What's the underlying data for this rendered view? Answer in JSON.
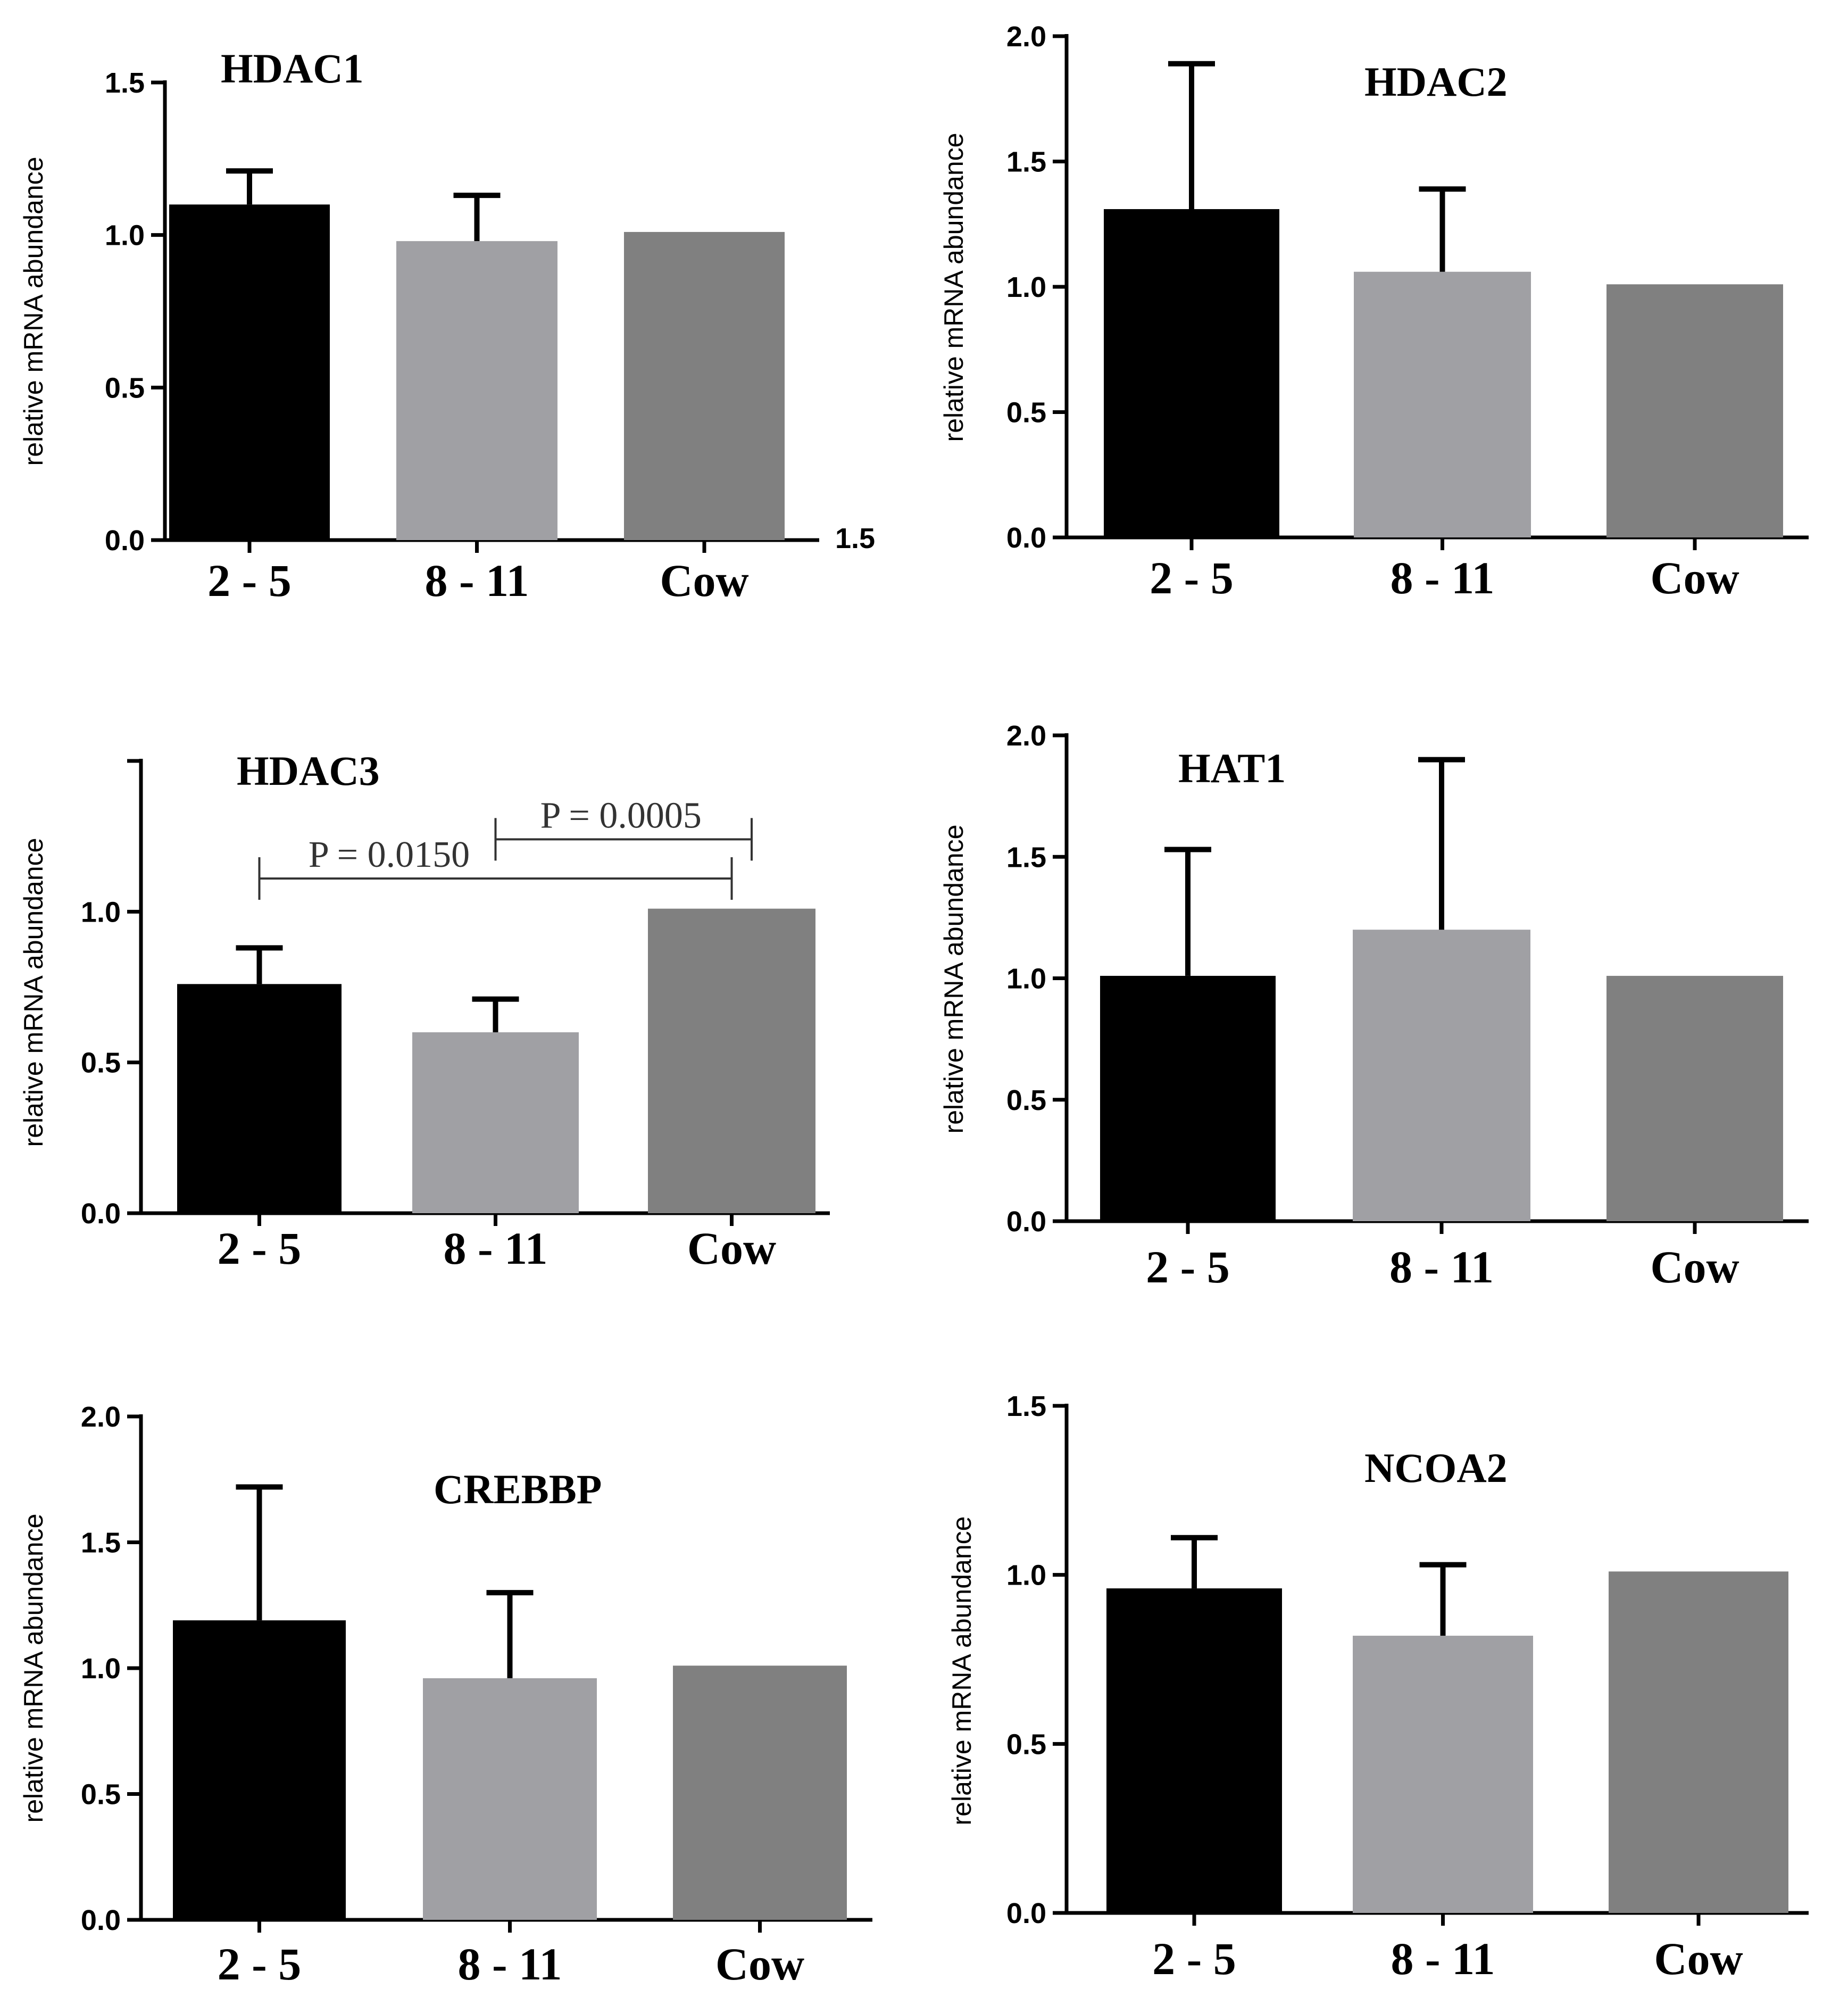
{
  "chart_data": [
    {
      "type": "bar",
      "title": "HDAC1",
      "ylabel": "relative mRNA abundance",
      "categories": [
        "2 - 5",
        "8 - 11",
        "Cow"
      ],
      "values": [
        1.1,
        0.98,
        1.01
      ],
      "errors": [
        0.11,
        0.15,
        0
      ],
      "colors": [
        "#000000",
        "#a0a0a4",
        "#808080"
      ],
      "ylim": [
        0,
        1.5
      ],
      "yticks": [
        "0.0",
        "0.5",
        "1.0",
        "1.5"
      ],
      "annotations": [],
      "stray_label": "1.5"
    },
    {
      "type": "bar",
      "title": "HDAC2",
      "ylabel": "relative mRNA abundance",
      "categories": [
        "2 - 5",
        "8 - 11",
        "Cow"
      ],
      "values": [
        1.31,
        1.06,
        1.01
      ],
      "errors": [
        0.58,
        0.33,
        0
      ],
      "colors": [
        "#000000",
        "#a0a0a4",
        "#808080"
      ],
      "ylim": [
        0,
        2.0
      ],
      "yticks": [
        "0.0",
        "0.5",
        "1.0",
        "1.5",
        "2.0"
      ],
      "annotations": []
    },
    {
      "type": "bar",
      "title": "HDAC3",
      "ylabel": "relative mRNA abundance",
      "categories": [
        "2 - 5",
        "8 - 11",
        "Cow"
      ],
      "values": [
        0.76,
        0.6,
        1.01
      ],
      "errors": [
        0.12,
        0.11,
        0
      ],
      "colors": [
        "#000000",
        "#a0a0a4",
        "#808080"
      ],
      "ylim": [
        0,
        1.5
      ],
      "yticks": [
        "0.0",
        "0.5",
        "1.0"
      ],
      "annotations": [
        {
          "text": "P = 0.0005",
          "from": 1,
          "to": 2,
          "level": 1.24
        },
        {
          "text": "P = 0.0150",
          "from": 0,
          "to": 2,
          "level": 1.11
        }
      ]
    },
    {
      "type": "bar",
      "title": "HAT1",
      "ylabel": "relative mRNA abundance",
      "categories": [
        "2 - 5",
        "8 - 11",
        "Cow"
      ],
      "values": [
        1.01,
        1.2,
        1.01
      ],
      "errors": [
        0.52,
        0.7,
        0
      ],
      "colors": [
        "#000000",
        "#a0a0a4",
        "#808080"
      ],
      "ylim": [
        0,
        2.0
      ],
      "yticks": [
        "0.0",
        "0.5",
        "1.0",
        "1.5",
        "2.0"
      ],
      "annotations": []
    },
    {
      "type": "bar",
      "title": "CREBBP",
      "ylabel": "relative mRNA abundance",
      "categories": [
        "2 - 5",
        "8 - 11",
        "Cow"
      ],
      "values": [
        1.19,
        0.96,
        1.01
      ],
      "errors": [
        0.53,
        0.34,
        0
      ],
      "colors": [
        "#000000",
        "#a0a0a4",
        "#808080"
      ],
      "ylim": [
        0,
        2.0
      ],
      "yticks": [
        "0.0",
        "0.5",
        "1.0",
        "1.5",
        "2.0"
      ],
      "annotations": []
    },
    {
      "type": "bar",
      "title": "NCOA2",
      "ylabel": "relative mRNA abundance",
      "categories": [
        "2 - 5",
        "8 - 11",
        "Cow"
      ],
      "values": [
        0.96,
        0.82,
        1.01
      ],
      "errors": [
        0.15,
        0.21,
        0
      ],
      "colors": [
        "#000000",
        "#a0a0a4",
        "#808080"
      ],
      "ylim": [
        0,
        1.5
      ],
      "yticks": [
        "0.0",
        "0.5",
        "1.0",
        "1.5"
      ],
      "annotations": []
    }
  ]
}
